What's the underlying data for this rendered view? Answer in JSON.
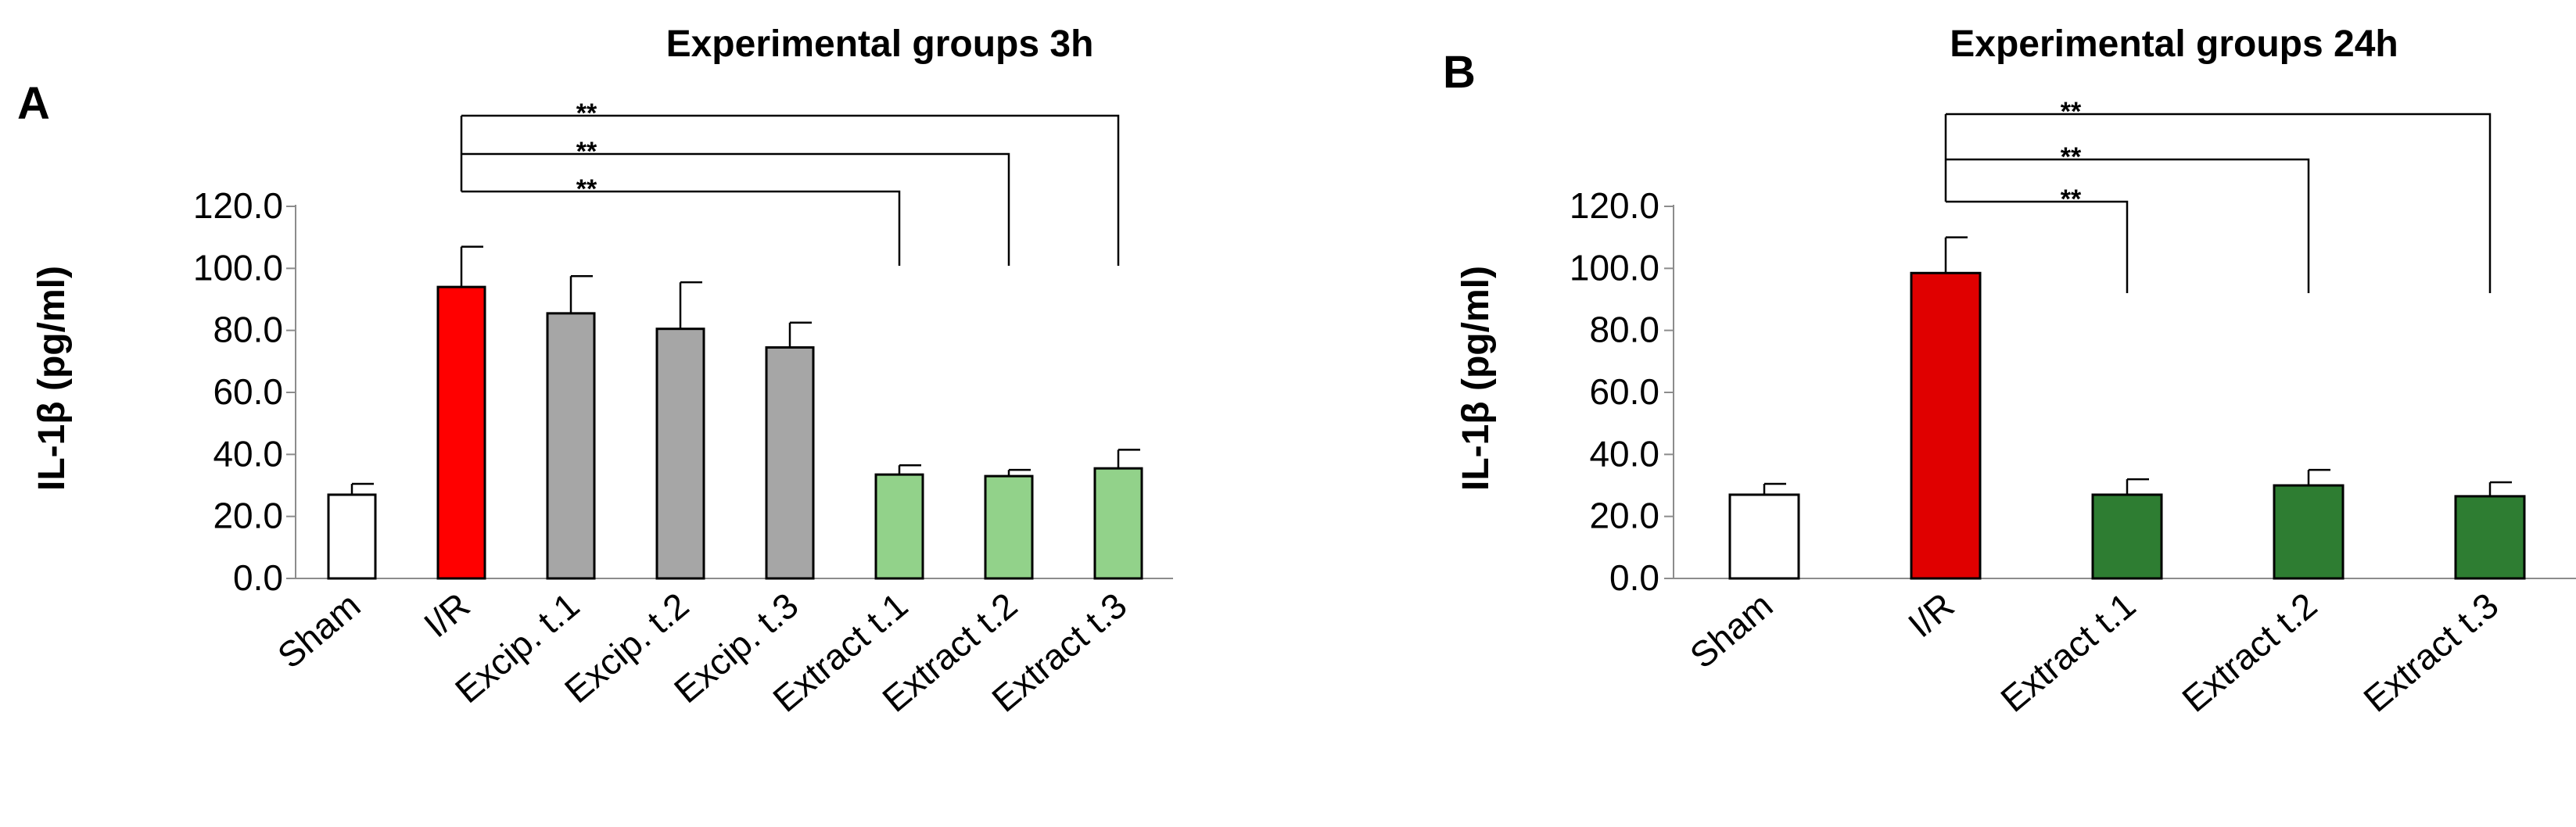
{
  "figure": {
    "background": "#ffffff"
  },
  "chart_data": [
    {
      "type": "bar",
      "panel_letter": "A",
      "title": "Experimental groups 3h",
      "xlabel": "",
      "ylabel": "IL-1β (pg/ml)",
      "ylim": [
        0,
        120
      ],
      "yticks": [
        "0.0",
        "20.0",
        "40.0",
        "60.0",
        "80.0",
        "100.0",
        "120.0"
      ],
      "ytick_values": [
        0,
        20,
        40,
        60,
        80,
        100,
        120
      ],
      "grid": false,
      "categories": [
        "Sham",
        "I/R",
        "Excip. t.1",
        "Excip. t.2",
        "Excip. t.3",
        "Extract t.1",
        "Extract t.2",
        "Extract t.3"
      ],
      "values": [
        27,
        94,
        85.5,
        80.5,
        74.5,
        33.5,
        33,
        35.5
      ],
      "errors": [
        3.5,
        13,
        12,
        15,
        8,
        3,
        2,
        6
      ],
      "colors": [
        "#ffffff",
        "#ff0000",
        "#a6a6a6",
        "#a6a6a6",
        "#a6a6a6",
        "#92d28a",
        "#92d28a",
        "#92d28a"
      ],
      "significance": [
        {
          "from": 1,
          "to": 5,
          "label": "**"
        },
        {
          "from": 1,
          "to": 6,
          "label": "**"
        },
        {
          "from": 1,
          "to": 7,
          "label": "**"
        }
      ]
    },
    {
      "type": "bar",
      "panel_letter": "B",
      "title": "Experimental groups 24h",
      "xlabel": "",
      "ylabel": "IL-1β (pg/ml)",
      "ylim": [
        0,
        120
      ],
      "yticks": [
        "0.0",
        "20.0",
        "40.0",
        "60.0",
        "80.0",
        "100.0",
        "120.0"
      ],
      "ytick_values": [
        0,
        20,
        40,
        60,
        80,
        100,
        120
      ],
      "grid": false,
      "categories": [
        "Sham",
        "I/R",
        "Extract t.1",
        "Extract t.2",
        "Extract t.3"
      ],
      "values": [
        27,
        98.5,
        27,
        30,
        26.5
      ],
      "errors": [
        3.5,
        11.5,
        5,
        5,
        4.5
      ],
      "colors": [
        "#ffffff",
        "#e00000",
        "#2e7d32",
        "#2e7d32",
        "#2e7d32"
      ],
      "significance": [
        {
          "from": 1,
          "to": 2,
          "label": "**"
        },
        {
          "from": 1,
          "to": 3,
          "label": "**"
        },
        {
          "from": 1,
          "to": 4,
          "label": "**"
        }
      ]
    }
  ]
}
